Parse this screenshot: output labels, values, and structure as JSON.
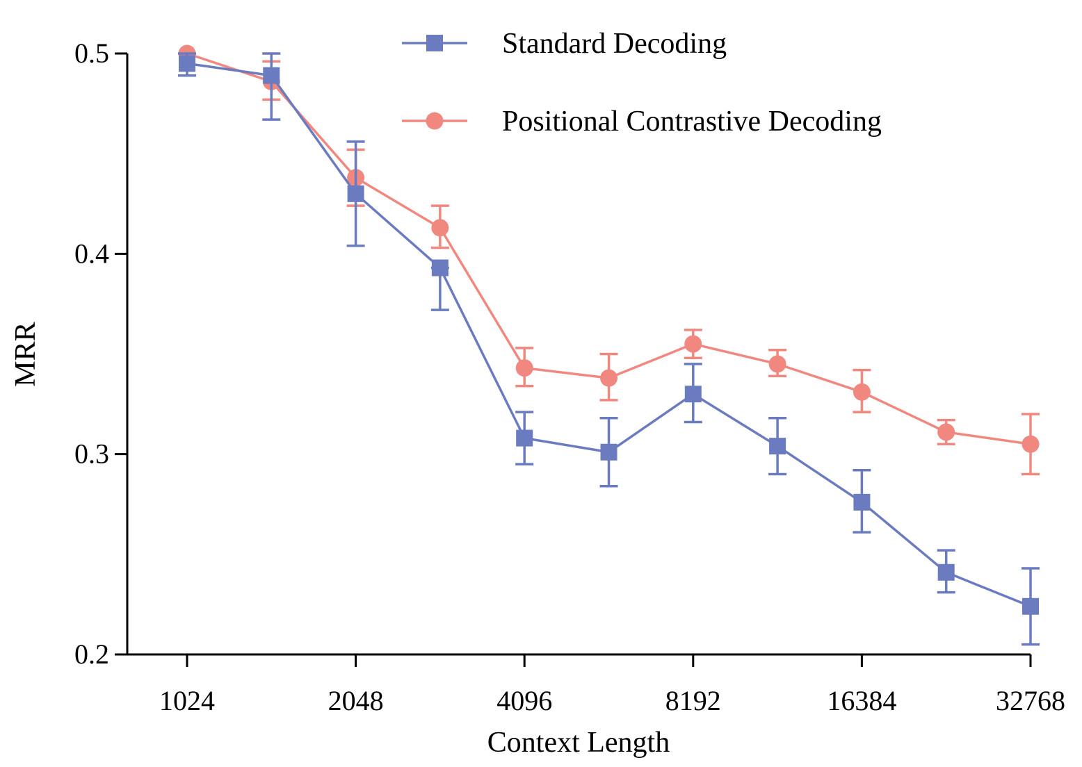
{
  "chart_data": {
    "type": "line",
    "title": "",
    "xlabel": "Context Length",
    "ylabel": "MRR",
    "x_scale": "log2",
    "x_ticks": [
      1024,
      2048,
      4096,
      8192,
      16384,
      32768
    ],
    "x_tick_labels": [
      "1024",
      "2048",
      "4096",
      "8192",
      "16384",
      "32768"
    ],
    "y_ticks": [
      0.2,
      0.3,
      0.4,
      0.5
    ],
    "y_tick_labels": [
      "0.2",
      "0.3",
      "0.4",
      "0.5"
    ],
    "xlim": [
      660,
      32768
    ],
    "ylim": [
      0.2,
      0.5
    ],
    "grid": false,
    "legend_position": "top-center",
    "x": [
      1024,
      1448,
      2048,
      2896,
      4096,
      5793,
      8192,
      11585,
      16384,
      23170,
      32768
    ],
    "series": [
      {
        "name": "Standard Decoding",
        "marker": "square",
        "color": "#6a7bbf",
        "values": [
          0.495,
          0.489,
          0.43,
          0.393,
          0.308,
          0.301,
          0.33,
          0.304,
          0.276,
          0.241,
          0.224
        ],
        "err_low": [
          0.489,
          0.467,
          0.404,
          0.372,
          0.295,
          0.284,
          0.316,
          0.29,
          0.261,
          0.231,
          0.205
        ],
        "err_high": [
          0.5,
          0.5,
          0.456,
          0.393,
          0.321,
          0.318,
          0.345,
          0.318,
          0.292,
          0.252,
          0.243
        ]
      },
      {
        "name": "Positional Contrastive Decoding",
        "marker": "circle",
        "color": "#f08880",
        "values": [
          0.5,
          0.486,
          0.438,
          0.413,
          0.343,
          0.338,
          0.355,
          0.345,
          0.331,
          0.311,
          0.305
        ],
        "err_low": [
          0.5,
          0.477,
          0.424,
          0.403,
          0.334,
          0.327,
          0.348,
          0.339,
          0.321,
          0.305,
          0.29
        ],
        "err_high": [
          0.5,
          0.496,
          0.452,
          0.424,
          0.353,
          0.35,
          0.362,
          0.352,
          0.342,
          0.317,
          0.32
        ]
      }
    ]
  }
}
